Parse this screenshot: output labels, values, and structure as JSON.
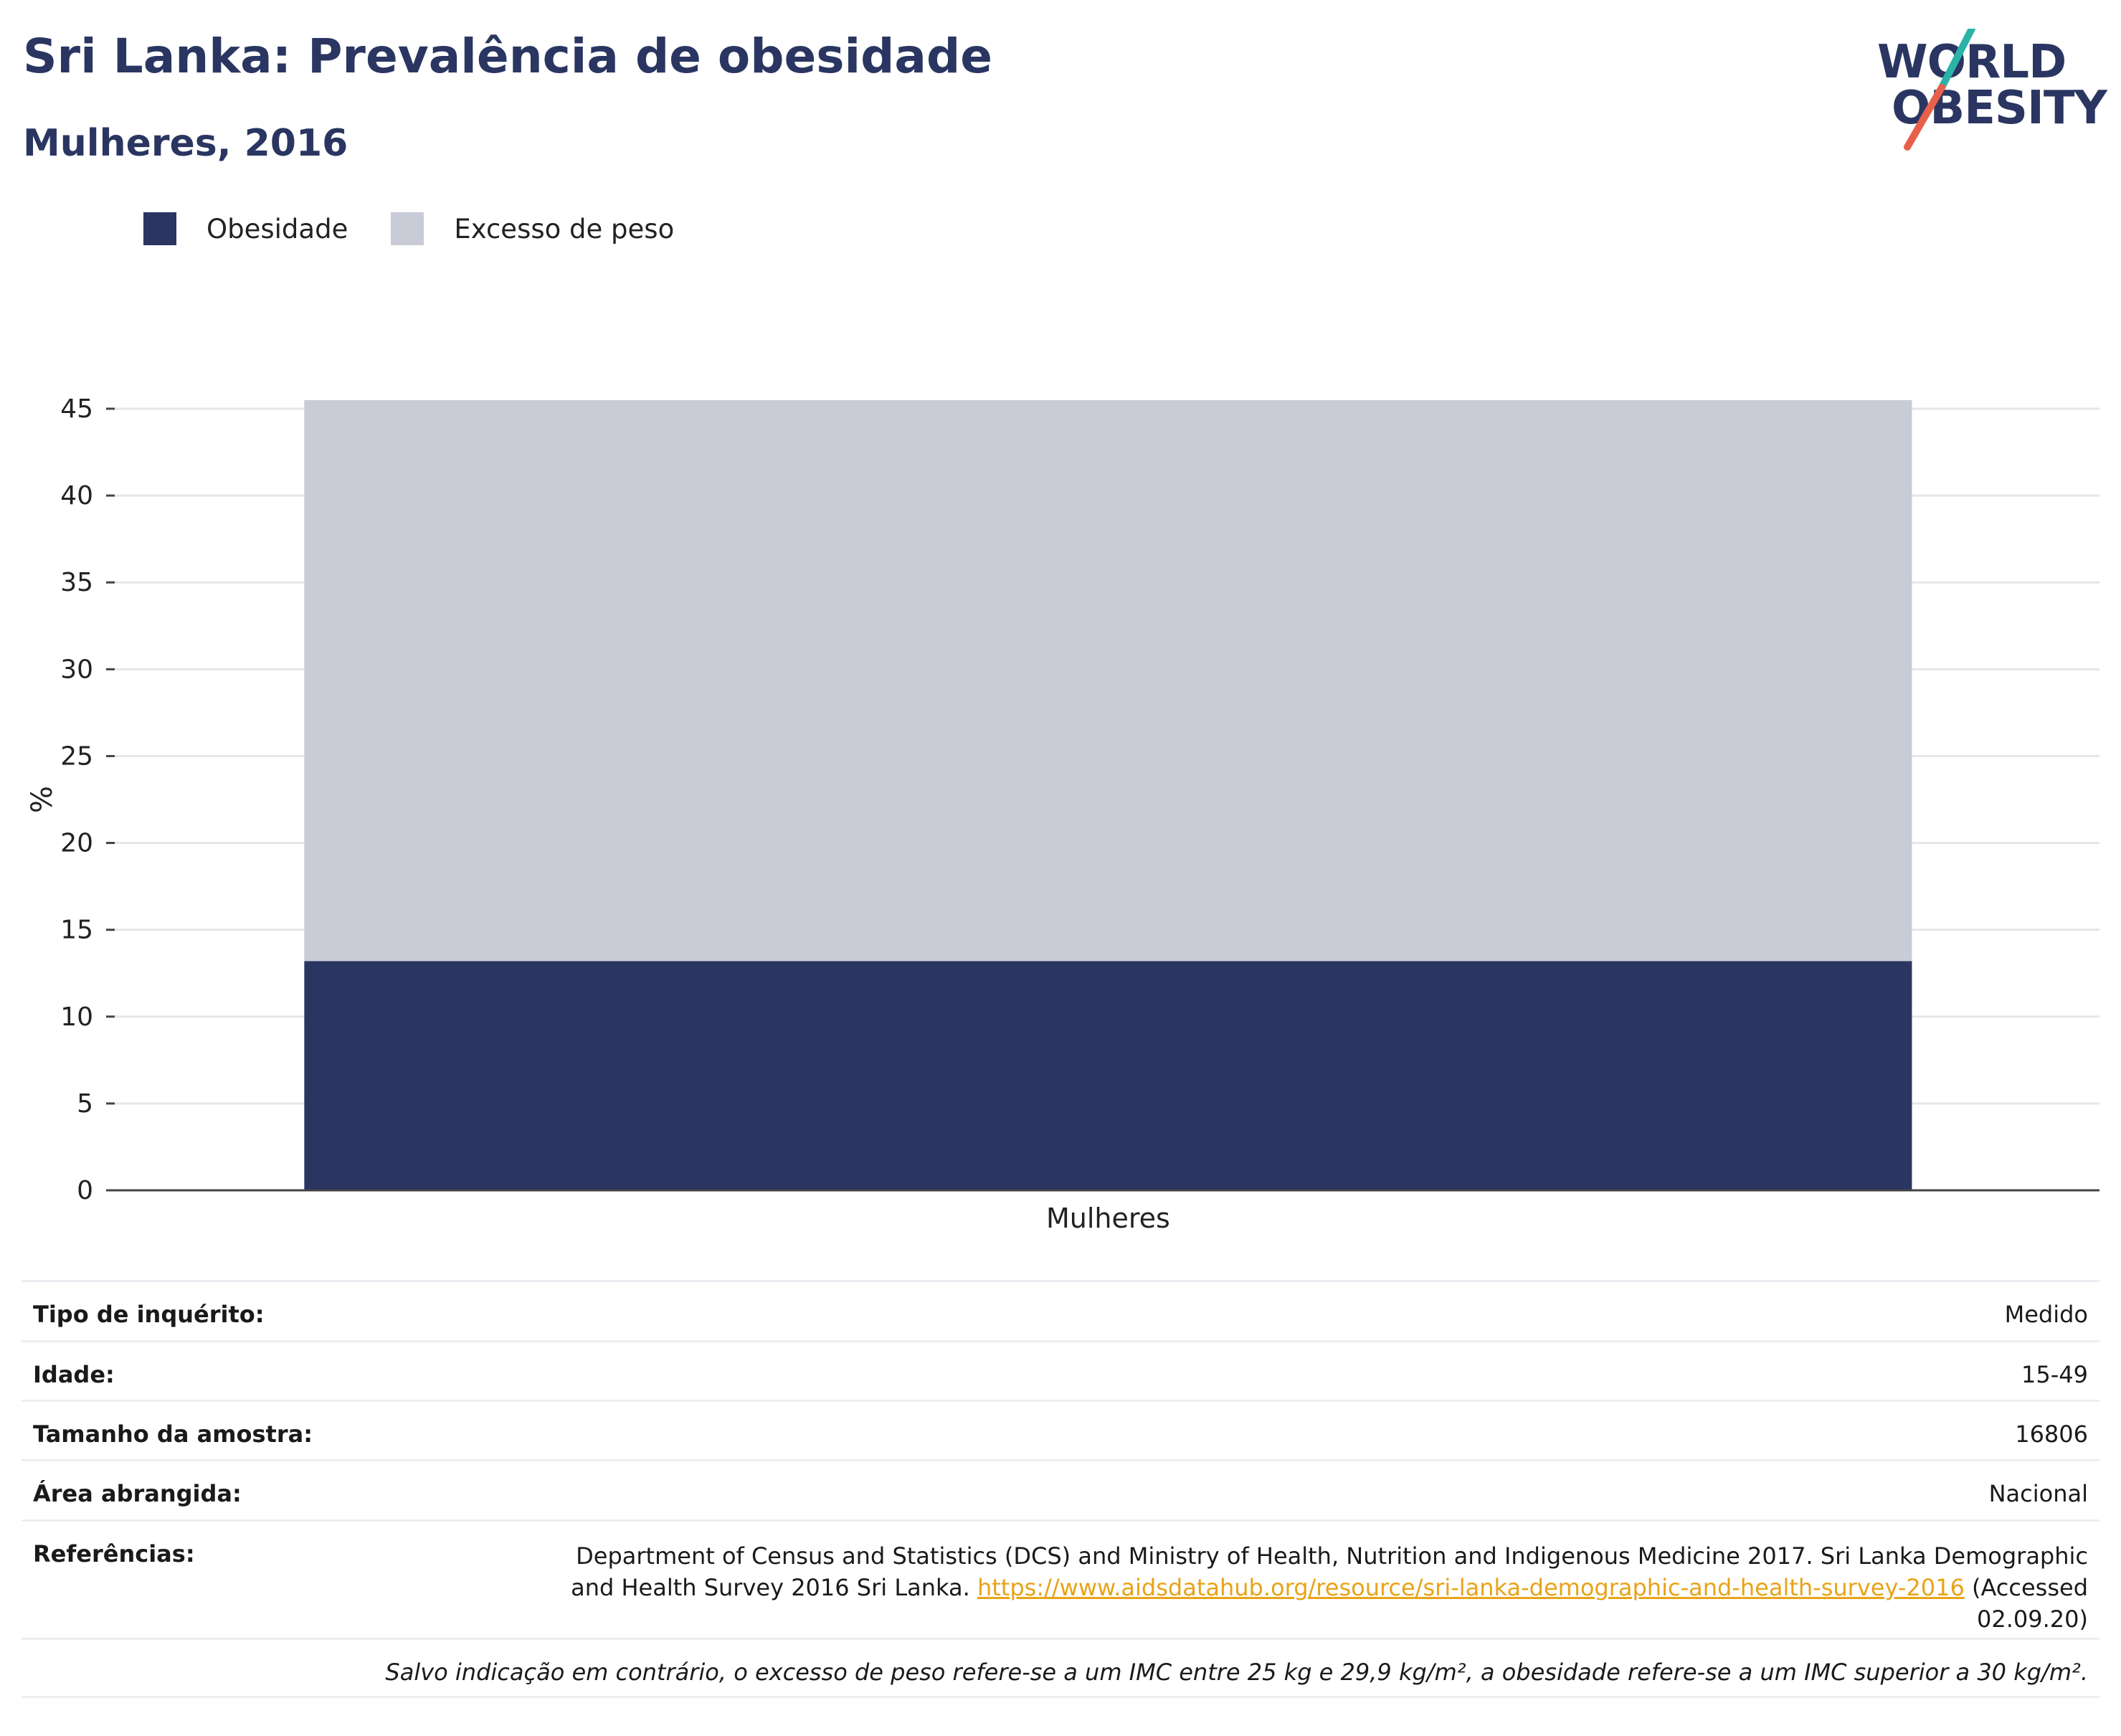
{
  "header": {
    "title": "Sri Lanka: Prevalência de obesidade",
    "subtitle": "Mulheres, 2016"
  },
  "logo": {
    "line1": "WORLD",
    "line2": "OBESITY",
    "accent_teal": "#2bb3a8",
    "accent_red": "#e8604c"
  },
  "legend": [
    {
      "label": "Obesidade",
      "color": "#2a3661"
    },
    {
      "label": "Excesso de peso",
      "color": "#c9ccd7"
    }
  ],
  "chart_data": {
    "type": "bar",
    "stacked": true,
    "categories": [
      "Mulheres"
    ],
    "series": [
      {
        "name": "Obesidade",
        "values": [
          13.2
        ],
        "color": "#2a3661"
      },
      {
        "name": "Excesso de peso",
        "values": [
          32.3
        ],
        "color": "#c9ccd7"
      }
    ],
    "ylabel": "%",
    "xlabel": "",
    "ylim": [
      0,
      45
    ],
    "yticks": [
      0,
      5,
      10,
      15,
      20,
      25,
      30,
      35,
      40,
      45
    ],
    "grid": true,
    "legend_position": "top-left"
  },
  "info": {
    "survey_type": {
      "label": "Tipo de inquérito:",
      "value": "Medido"
    },
    "age": {
      "label": "Idade:",
      "value": "15-49"
    },
    "sample": {
      "label": "Tamanho da amostra:",
      "value": "16806"
    },
    "area": {
      "label": "Área abrangida:",
      "value": "Nacional"
    },
    "references": {
      "label": "Referências:",
      "text_before": "Department of Census and Statistics (DCS) and Ministry of Health, Nutrition and Indigenous Medicine 2017. Sri Lanka Demographic and Health Survey 2016 Sri Lanka. ",
      "link": "https://www.aidsdatahub.org/resource/sri-lanka-demographic-and-health-survey-2016",
      "text_after": " (Accessed 02.09.20)"
    },
    "note": "Salvo indicação em contrário, o excesso de peso refere-se a um IMC entre 25 kg e 29,9 kg/m², a obesidade refere-se a um IMC superior a 30 kg/m²."
  }
}
